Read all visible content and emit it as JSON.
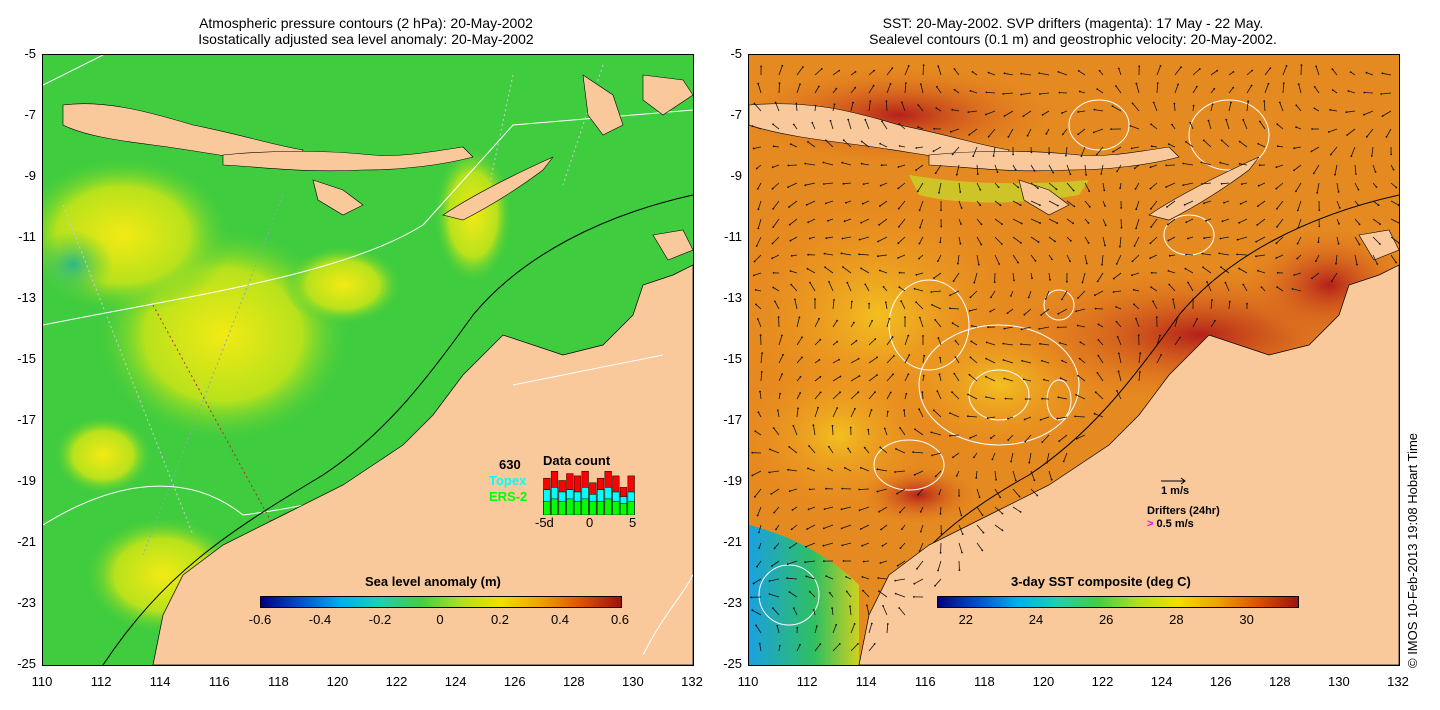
{
  "left_title": {
    "line1": "Atmospheric pressure contours (2 hPa): 20-May-2002",
    "line2": "Isostatically adjusted sea level anomaly: 20-May-2002"
  },
  "right_title": {
    "line1": "SST: 20-May-2002. SVP drifters (magenta): 17 May - 22 May.",
    "line2": "Sealevel contours (0.1 m) and geostrophic velocity: 20-May-2002."
  },
  "y_ticks": [
    "-5",
    "-7",
    "-9",
    "-11",
    "-13",
    "-15",
    "-17",
    "-19",
    "-21",
    "-23",
    "-25"
  ],
  "x_ticks": [
    "110",
    "112",
    "114",
    "116",
    "118",
    "120",
    "122",
    "124",
    "126",
    "128",
    "130",
    "132"
  ],
  "left_colorbar": {
    "label": "Sea level anomaly (m)",
    "ticks": [
      "-0.6",
      "-0.4",
      "-0.2",
      "0",
      "0.2",
      "0.4",
      "0.6"
    ]
  },
  "right_colorbar": {
    "label": "3-day SST composite (deg C)",
    "ticks": [
      "22",
      "24",
      "26",
      "28",
      "30"
    ]
  },
  "data_count": {
    "title": "Data count",
    "total": "630",
    "topex_label": "Topex",
    "ers_label": "ERS-2",
    "axis_ticks": [
      "-5d",
      "0",
      "5"
    ],
    "bars": [
      0.8,
      0.95,
      0.75,
      0.9,
      0.85,
      0.95,
      0.7,
      0.8,
      0.95,
      0.85,
      0.6,
      0.85
    ],
    "topex": [
      0.55,
      0.6,
      0.5,
      0.55,
      0.5,
      0.6,
      0.45,
      0.55,
      0.6,
      0.5,
      0.4,
      0.5
    ],
    "ers": [
      0.3,
      0.35,
      0.3,
      0.35,
      0.3,
      0.35,
      0.3,
      0.3,
      0.35,
      0.3,
      0.25,
      0.3
    ]
  },
  "velocity_legend": {
    "scale": "1 m/s",
    "drifters_title": "Drifters (24hr)",
    "drifter_scale": "0.5 m/s",
    "drifter_symbol": ">"
  },
  "credit": "© IMOS 10-Feb-2013 19:08 Hobart Time",
  "colors": {
    "land": "#f9c89b",
    "ocean_left": "#3fcc3f",
    "ocean_right": "#e87e1e",
    "topex": "#00ffff",
    "ers": "#00ff00",
    "count_red": "#ff0000",
    "drifter": "#ff00ff"
  }
}
